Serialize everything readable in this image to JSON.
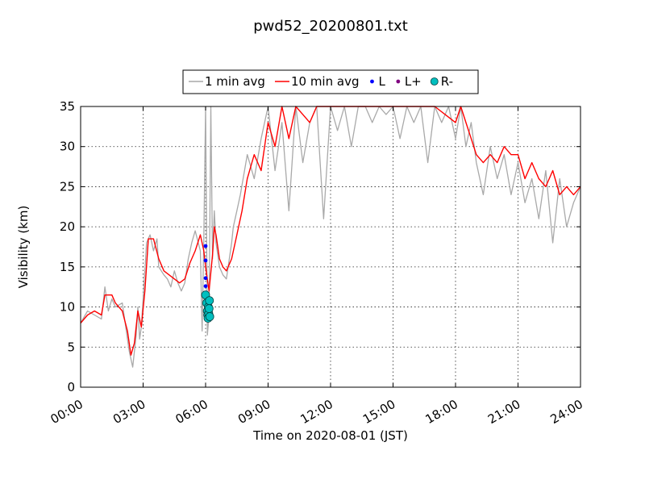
{
  "chart_data": {
    "type": "line",
    "title": "pwd52_20200801.txt",
    "xlabel": "Time on 2020-08-01 (JST)",
    "ylabel": "Visibility (km)",
    "xlim": [
      "00:00",
      "24:00"
    ],
    "ylim": [
      0,
      35
    ],
    "x_tick_labels": [
      "00:00",
      "03:00",
      "06:00",
      "09:00",
      "12:00",
      "15:00",
      "18:00",
      "21:00",
      "24:00"
    ],
    "y_tick_labels": [
      "0",
      "5",
      "10",
      "15",
      "20",
      "25",
      "30",
      "35"
    ],
    "grid": true,
    "legend": {
      "placement": "top-center, outside plot"
    },
    "series": [
      {
        "name": "1 min avg",
        "style": "line",
        "color": "#a9a9a9",
        "x": [
          "00:00",
          "00:20",
          "00:40",
          "01:00",
          "01:10",
          "01:20",
          "01:30",
          "01:40",
          "02:00",
          "02:15",
          "02:20",
          "02:30",
          "02:40",
          "02:45",
          "02:50",
          "02:55",
          "03:00",
          "03:10",
          "03:20",
          "03:30",
          "03:40",
          "03:45",
          "04:00",
          "04:10",
          "04:20",
          "04:30",
          "04:40",
          "04:50",
          "05:00",
          "05:10",
          "05:20",
          "05:30",
          "05:45",
          "05:50",
          "05:55",
          "06:00",
          "06:05",
          "06:10",
          "06:15",
          "06:20",
          "06:25",
          "06:30",
          "06:35",
          "06:40",
          "06:50",
          "07:00",
          "07:15",
          "07:20",
          "07:30",
          "07:40",
          "08:00",
          "08:20",
          "08:40",
          "09:00",
          "09:20",
          "09:40",
          "10:00",
          "10:20",
          "10:40",
          "11:00",
          "11:20",
          "11:40",
          "12:00",
          "12:20",
          "12:40",
          "13:00",
          "13:20",
          "13:40",
          "14:00",
          "14:20",
          "14:40",
          "15:00",
          "15:20",
          "15:40",
          "16:00",
          "16:20",
          "16:40",
          "17:00",
          "17:20",
          "17:40",
          "18:00",
          "18:15",
          "18:30",
          "18:45",
          "19:00",
          "19:20",
          "19:40",
          "20:00",
          "20:20",
          "20:40",
          "21:00",
          "21:20",
          "21:40",
          "22:00",
          "22:20",
          "22:40",
          "23:00",
          "23:20",
          "23:40",
          "24:00"
        ],
        "y": [
          8.0,
          9.5,
          9.0,
          8.5,
          12.5,
          9.5,
          11.0,
          10.0,
          10.5,
          6.0,
          4.5,
          2.5,
          6.5,
          10.0,
          6.0,
          7.5,
          11.0,
          18.0,
          19.0,
          17.0,
          18.5,
          15.0,
          14.0,
          13.5,
          12.5,
          14.5,
          13.0,
          12.0,
          13.0,
          16.0,
          18.0,
          19.5,
          17.0,
          7.0,
          18.5,
          35.0,
          6.5,
          9.0,
          35.0,
          16.0,
          22.0,
          18.0,
          16.5,
          15.0,
          14.0,
          13.5,
          18.0,
          20.0,
          22.0,
          24.0,
          29.0,
          26.0,
          31.0,
          35.0,
          27.0,
          33.0,
          22.0,
          35.0,
          28.0,
          33.0,
          35.0,
          21.0,
          35.0,
          32.0,
          35.0,
          30.0,
          35.0,
          35.0,
          33.0,
          35.0,
          34.0,
          35.0,
          31.0,
          35.0,
          33.0,
          35.0,
          28.0,
          35.0,
          33.0,
          35.0,
          31.0,
          35.0,
          30.0,
          33.0,
          28.0,
          24.0,
          30.0,
          26.0,
          29.0,
          24.0,
          28.0,
          23.0,
          26.0,
          21.0,
          27.0,
          18.0,
          26.0,
          20.0,
          23.0,
          25.0
        ]
      },
      {
        "name": "10 min avg",
        "style": "line",
        "color": "#ff0000",
        "x": [
          "00:00",
          "00:20",
          "00:40",
          "01:00",
          "01:10",
          "01:20",
          "01:30",
          "01:40",
          "02:00",
          "02:15",
          "02:25",
          "02:35",
          "02:45",
          "02:55",
          "03:05",
          "03:15",
          "03:30",
          "03:45",
          "04:00",
          "04:15",
          "04:30",
          "04:45",
          "05:00",
          "05:15",
          "05:30",
          "05:45",
          "05:55",
          "06:00",
          "06:10",
          "06:20",
          "06:25",
          "06:30",
          "06:40",
          "06:50",
          "07:00",
          "07:15",
          "07:30",
          "07:45",
          "08:00",
          "08:20",
          "08:40",
          "09:00",
          "09:20",
          "09:40",
          "10:00",
          "10:20",
          "10:40",
          "11:00",
          "11:20",
          "11:40",
          "12:00",
          "12:30",
          "13:00",
          "13:30",
          "14:00",
          "14:30",
          "15:00",
          "15:30",
          "16:00",
          "16:30",
          "17:00",
          "17:30",
          "18:00",
          "18:15",
          "18:30",
          "18:45",
          "19:00",
          "19:20",
          "19:40",
          "20:00",
          "20:20",
          "20:40",
          "21:00",
          "21:20",
          "21:40",
          "22:00",
          "22:20",
          "22:40",
          "23:00",
          "23:20",
          "23:40",
          "24:00"
        ],
        "y": [
          8.0,
          9.0,
          9.5,
          9.0,
          11.5,
          11.5,
          11.5,
          10.5,
          9.5,
          7.0,
          4.0,
          5.5,
          9.5,
          7.5,
          12.0,
          18.5,
          18.5,
          16.0,
          14.5,
          14.0,
          13.5,
          13.0,
          13.5,
          15.5,
          17.0,
          19.0,
          17.0,
          15.0,
          12.0,
          16.5,
          20.0,
          19.0,
          16.0,
          15.0,
          14.5,
          16.0,
          19.0,
          22.0,
          26.0,
          29.0,
          27.0,
          33.0,
          30.0,
          35.0,
          31.0,
          35.0,
          34.0,
          33.0,
          35.0,
          35.0,
          35.0,
          35.0,
          35.0,
          35.0,
          35.0,
          35.0,
          35.0,
          35.0,
          35.0,
          35.0,
          35.0,
          34.0,
          33.0,
          35.0,
          33.0,
          31.0,
          29.0,
          28.0,
          29.0,
          28.0,
          30.0,
          29.0,
          29.0,
          26.0,
          28.0,
          26.0,
          25.0,
          27.0,
          24.0,
          25.0,
          24.0,
          25.0
        ]
      },
      {
        "name": "L",
        "style": "scatter",
        "color": "#0000ff",
        "x": [
          "06:00",
          "06:00",
          "06:00",
          "06:00",
          "06:01"
        ],
        "y": [
          17.6,
          15.8,
          13.6,
          12.6,
          11.8
        ]
      },
      {
        "name": "L+",
        "style": "scatter",
        "color": "#800080",
        "x": [],
        "y": []
      },
      {
        "name": "R-",
        "style": "scatter",
        "color": "#00bfbf",
        "x": [
          "06:00",
          "06:03",
          "06:05",
          "06:06",
          "06:07",
          "06:08",
          "06:09",
          "06:10",
          "06:11",
          "06:12"
        ],
        "y": [
          11.5,
          10.5,
          9.5,
          9.0,
          8.6,
          10.0,
          9.2,
          9.8,
          10.8,
          8.8
        ]
      }
    ]
  }
}
